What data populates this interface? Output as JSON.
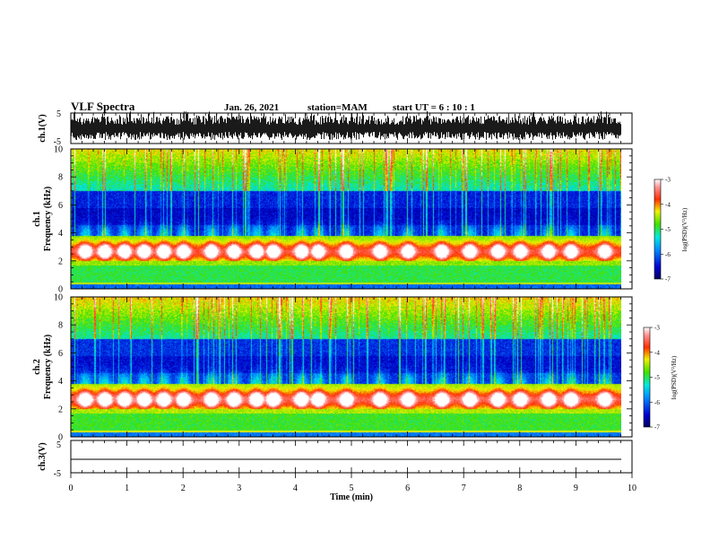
{
  "header": {
    "title": "VLF Spectra",
    "date": "Jan. 26, 2021",
    "station": "station=MAM",
    "start": "start UT = 6 : 10 : 1"
  },
  "chart_data": [
    {
      "type": "line",
      "name": "ch1-waveform",
      "ylabel": "ch.1(V)",
      "ylim": [
        -5,
        5
      ],
      "yticks": [
        "5",
        "-5"
      ],
      "xlim": [
        0,
        10
      ]
    },
    {
      "type": "heatmap",
      "name": "ch1-spectrogram",
      "ylabel_line1": "ch.1",
      "ylabel_line2": "Frequency (kHz)",
      "ylim": [
        0,
        10
      ],
      "yticks": [
        "0",
        "2",
        "4",
        "6",
        "8",
        "10"
      ],
      "xlim": [
        0,
        10
      ],
      "burst_times_min": [
        0.25,
        0.6,
        0.95,
        1.3,
        1.65,
        2.0,
        2.5,
        2.9,
        3.3,
        3.6,
        4.1,
        4.4,
        4.9,
        5.5,
        6.0,
        6.6,
        7.1,
        7.6,
        8.0,
        8.5,
        8.9,
        9.5
      ],
      "colorbar": {
        "label": "log(PSD)(V²/Hz)",
        "ticks": [
          "-3",
          "-4",
          "-5",
          "-6",
          "-7"
        ],
        "range": [
          -7,
          -3
        ]
      }
    },
    {
      "type": "heatmap",
      "name": "ch2-spectrogram",
      "ylabel_line1": "ch.2",
      "ylabel_line2": "Frequency (kHz)",
      "ylim": [
        0,
        10
      ],
      "yticks": [
        "0",
        "2",
        "4",
        "6",
        "8",
        "10"
      ],
      "xlim": [
        0,
        10
      ],
      "burst_times_min": [
        0.25,
        0.6,
        0.95,
        1.3,
        1.65,
        2.0,
        2.5,
        2.9,
        3.3,
        3.6,
        4.1,
        4.4,
        4.9,
        5.5,
        6.0,
        6.6,
        7.1,
        7.6,
        8.0,
        8.5,
        8.9,
        9.5
      ],
      "colorbar": {
        "label": "log(PSD)(V²/Hz)",
        "ticks": [
          "-3",
          "-4",
          "-5",
          "-6",
          "-7"
        ],
        "range": [
          -7,
          -3
        ]
      }
    },
    {
      "type": "line",
      "name": "ch3-waveform",
      "ylabel": "ch.3(V)",
      "ylim": [
        -5,
        5
      ],
      "yticks": [
        "5",
        "-5"
      ],
      "xlim": [
        0,
        10
      ],
      "x": [
        0,
        9.8
      ],
      "y": [
        0,
        0
      ]
    }
  ],
  "xaxis": {
    "label": "Time (min)",
    "ticks": [
      "0",
      "1",
      "2",
      "3",
      "4",
      "5",
      "6",
      "7",
      "8",
      "9",
      "10"
    ]
  }
}
